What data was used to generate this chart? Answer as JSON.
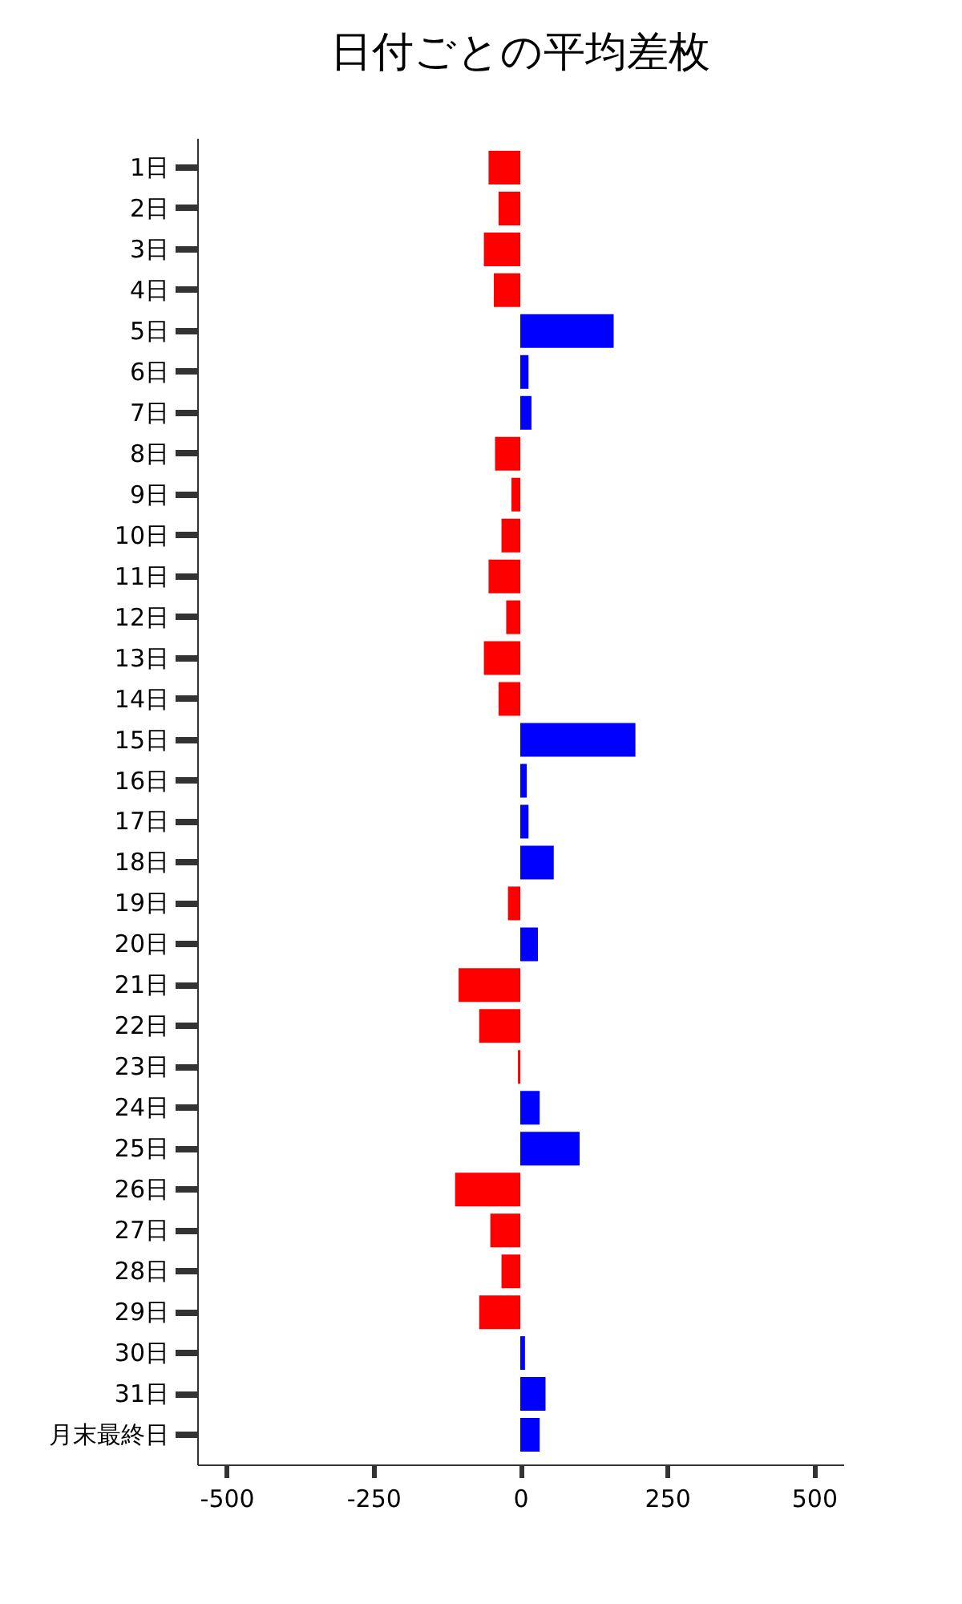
{
  "chart_data": {
    "type": "bar",
    "orientation": "horizontal",
    "title": "日付ごとの平均差枚",
    "categories": [
      "1日",
      "2日",
      "3日",
      "4日",
      "5日",
      "6日",
      "7日",
      "8日",
      "9日",
      "10日",
      "11日",
      "12日",
      "13日",
      "14日",
      "15日",
      "16日",
      "17日",
      "18日",
      "19日",
      "20日",
      "21日",
      "22日",
      "23日",
      "24日",
      "25日",
      "26日",
      "27日",
      "28日",
      "29日",
      "30日",
      "31日",
      "月末最終日"
    ],
    "values": [
      -54,
      -37,
      -62,
      -45,
      159,
      14,
      19,
      -43,
      -15,
      -32,
      -54,
      -24,
      -62,
      -37,
      196,
      11,
      14,
      57,
      -21,
      30,
      -105,
      -70,
      -4,
      33,
      101,
      -111,
      -51,
      -32,
      -70,
      8,
      43,
      33
    ],
    "colors": [
      "#ff0000",
      "#ff0000",
      "#ff0000",
      "#ff0000",
      "#0000ff",
      "#0000ff",
      "#0000ff",
      "#ff0000",
      "#ff0000",
      "#ff0000",
      "#ff0000",
      "#ff0000",
      "#ff0000",
      "#ff0000",
      "#0000ff",
      "#0000ff",
      "#0000ff",
      "#0000ff",
      "#ff0000",
      "#0000ff",
      "#ff0000",
      "#ff0000",
      "#ff0000",
      "#0000ff",
      "#0000ff",
      "#ff0000",
      "#ff0000",
      "#ff0000",
      "#ff0000",
      "#0000ff",
      "#0000ff",
      "#0000ff"
    ],
    "xlim": [
      -550,
      550
    ],
    "xticks": [
      -500,
      -250,
      0,
      250,
      500
    ],
    "grid": false
  }
}
